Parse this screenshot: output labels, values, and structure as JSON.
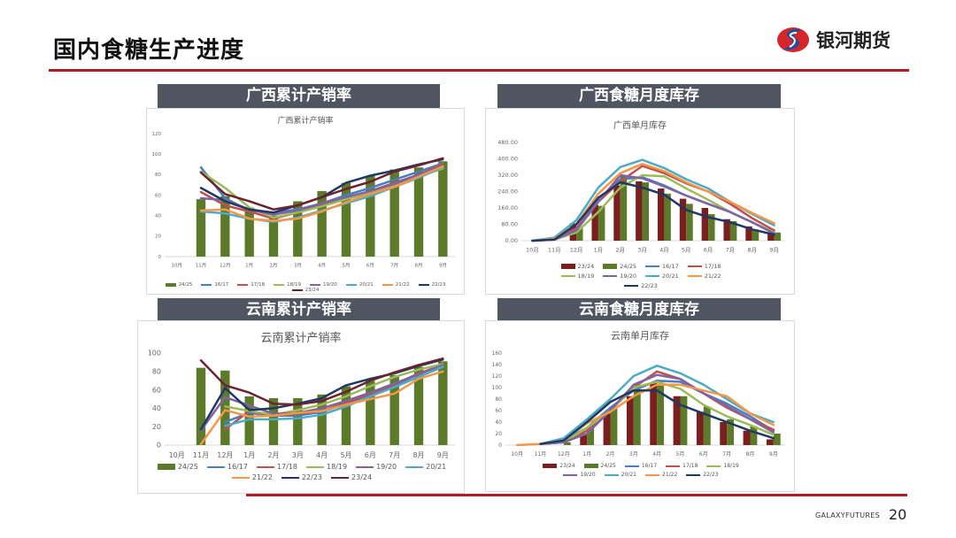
{
  "slide": {
    "title": "国内食糖生产进度",
    "logo_text": "银河期货",
    "footer_brand": "GALAXYFUTURES",
    "page_number": "20"
  },
  "colors": {
    "accent": "#b01e23",
    "header_bg": "#4f5661",
    "series": {
      "23/24_bar": "#7b1e1e",
      "24/25": "#5b7a2a",
      "16/17": "#4a7ebf",
      "17/18": "#c0504d",
      "18/19": "#9bbb59",
      "19/20": "#8064a2",
      "20/21": "#4bacc6",
      "21/22": "#f79646",
      "22/23": "#1f3864",
      "23/24": "#6b2330"
    }
  },
  "panels": [
    {
      "header": "广西累计产销率"
    },
    {
      "header": "广西食糖月度库存"
    },
    {
      "header": "云南累计产销率"
    },
    {
      "header": "云南食糖月度库存"
    }
  ],
  "chart_data": [
    {
      "type": "bar+line",
      "title": "广西累计产销率",
      "ylim": [
        0,
        120
      ],
      "yticks": [
        "0",
        "20",
        "40",
        "60",
        "80",
        "100",
        "120"
      ],
      "categories": [
        "10月",
        "11月",
        "12月",
        "1月",
        "2月",
        "3月",
        "4月",
        "5月",
        "6月",
        "7月",
        "8月",
        "9月"
      ],
      "legend": [
        "24/25",
        "16/17",
        "17/18",
        "18/19",
        "19/20",
        "20/21",
        "21/22",
        "22/23",
        "23/24"
      ],
      "bars": [
        {
          "name": "24/25",
          "values": [
            null,
            56,
            59,
            48,
            40,
            54,
            64,
            72,
            79,
            85,
            87,
            93
          ]
        }
      ],
      "series": [
        {
          "name": "16/17",
          "values": [
            null,
            87,
            57,
            45,
            43,
            46,
            52,
            60,
            67,
            75,
            83,
            91
          ]
        },
        {
          "name": "17/18",
          "values": [
            null,
            63,
            50,
            44,
            37,
            43,
            50,
            57,
            64,
            72,
            80,
            90
          ]
        },
        {
          "name": "18/19",
          "values": [
            null,
            83,
            67,
            48,
            38,
            43,
            49,
            56,
            62,
            69,
            78,
            86
          ]
        },
        {
          "name": "19/20",
          "values": [
            null,
            57,
            55,
            46,
            41,
            45,
            52,
            58,
            64,
            71,
            80,
            88
          ]
        },
        {
          "name": "20/21",
          "values": [
            null,
            44,
            42,
            37,
            34,
            38,
            45,
            52,
            59,
            68,
            77,
            87
          ]
        },
        {
          "name": "21/22",
          "values": [
            null,
            45,
            46,
            37,
            35,
            37,
            44,
            53,
            61,
            68,
            78,
            88
          ]
        },
        {
          "name": "22/23",
          "values": [
            null,
            67,
            54,
            46,
            43,
            50,
            58,
            72,
            79,
            84,
            90,
            95
          ]
        },
        {
          "name": "23/24",
          "values": [
            null,
            82,
            61,
            54,
            46,
            50,
            58,
            66,
            73,
            83,
            89,
            96
          ]
        }
      ]
    },
    {
      "type": "bar+line",
      "title": "广西单月库存",
      "ylim": [
        0,
        480
      ],
      "yticks": [
        "0.00",
        "80.00",
        "160.00",
        "240.00",
        "320.00",
        "400.00",
        "480.00"
      ],
      "categories": [
        "10月",
        "11月",
        "12月",
        "1月",
        "2月",
        "3月",
        "4月",
        "5月",
        "6月",
        "7月",
        "8月",
        "9月"
      ],
      "legend": [
        "23/24",
        "24/25",
        "16/17",
        "17/18",
        "18/19",
        "19/20",
        "20/21",
        "21/22",
        "22/23"
      ],
      "bars": [
        {
          "name": "23/24",
          "values": [
            0,
            5,
            85,
            175,
            270,
            290,
            255,
            205,
            160,
            105,
            70,
            35
          ]
        },
        {
          "name": "24/25",
          "values": [
            null,
            null,
            60,
            170,
            320,
            285,
            230,
            180,
            130,
            95,
            55,
            40
          ]
        }
      ],
      "series": [
        {
          "name": "16/17",
          "values": [
            0,
            10,
            60,
            200,
            300,
            310,
            270,
            220,
            180,
            140,
            90,
            40
          ]
        },
        {
          "name": "17/18",
          "values": [
            0,
            5,
            60,
            190,
            290,
            365,
            330,
            280,
            240,
            180,
            110,
            50
          ]
        },
        {
          "name": "18/19",
          "values": [
            0,
            5,
            40,
            140,
            260,
            320,
            315,
            255,
            200,
            140,
            90,
            40
          ]
        },
        {
          "name": "19/20",
          "values": [
            0,
            5,
            50,
            190,
            320,
            305,
            265,
            220,
            180,
            140,
            90,
            35
          ]
        },
        {
          "name": "20/21",
          "values": [
            0,
            15,
            100,
            260,
            360,
            395,
            355,
            300,
            255,
            190,
            130,
            75
          ]
        },
        {
          "name": "21/22",
          "values": [
            0,
            10,
            80,
            230,
            330,
            375,
            340,
            285,
            240,
            190,
            135,
            85
          ]
        },
        {
          "name": "22/23",
          "values": [
            0,
            5,
            80,
            210,
            285,
            260,
            225,
            150,
            115,
            90,
            55,
            30
          ]
        }
      ]
    },
    {
      "type": "bar+line",
      "title": "云南累计产销率",
      "ylim": [
        0,
        100
      ],
      "yticks": [
        "0",
        "20",
        "40",
        "60",
        "80",
        "100"
      ],
      "categories": [
        "10月",
        "11月",
        "12月",
        "1月",
        "2月",
        "3月",
        "4月",
        "5月",
        "6月",
        "7月",
        "8月",
        "9月"
      ],
      "legend": [
        "24/25",
        "16/17",
        "17/18",
        "18/19",
        "19/20",
        "20/21",
        "21/22",
        "22/23",
        "23/24"
      ],
      "bars": [
        {
          "name": "24/25",
          "values": [
            null,
            84,
            81,
            53,
            51,
            51,
            55,
            64,
            70,
            76,
            85,
            91
          ]
        }
      ],
      "series": [
        {
          "name": "16/17",
          "values": [
            null,
            null,
            25,
            35,
            32,
            32,
            36,
            45,
            55,
            65,
            77,
            88
          ]
        },
        {
          "name": "17/18",
          "values": [
            null,
            null,
            17,
            37,
            32,
            34,
            37,
            46,
            56,
            66,
            78,
            87
          ]
        },
        {
          "name": "18/19",
          "values": [
            null,
            null,
            42,
            37,
            33,
            38,
            44,
            53,
            64,
            74,
            82,
            88
          ]
        },
        {
          "name": "19/20",
          "values": [
            null,
            16,
            52,
            43,
            34,
            35,
            40,
            48,
            57,
            67,
            77,
            87
          ]
        },
        {
          "name": "20/21",
          "values": [
            null,
            null,
            21,
            28,
            28,
            29,
            33,
            42,
            53,
            63,
            74,
            85
          ]
        },
        {
          "name": "21/22",
          "values": [
            null,
            1,
            38,
            31,
            32,
            35,
            37,
            44,
            50,
            56,
            72,
            80
          ]
        },
        {
          "name": "22/23",
          "values": [
            null,
            17,
            62,
            38,
            40,
            45,
            51,
            65,
            72,
            78,
            86,
            93
          ]
        },
        {
          "name": "23/24",
          "values": [
            null,
            92,
            65,
            57,
            45,
            44,
            48,
            58,
            70,
            79,
            87,
            94
          ]
        }
      ]
    },
    {
      "type": "bar+line",
      "title": "云南单月库存",
      "ylim": [
        0,
        160
      ],
      "yticks": [
        "0",
        "20",
        "40",
        "60",
        "80",
        "100",
        "120",
        "140",
        "160"
      ],
      "categories": [
        "10月",
        "11月",
        "12月",
        "1月",
        "2月",
        "3月",
        "4月",
        "5月",
        "6月",
        "7月",
        "8月",
        "9月"
      ],
      "legend": [
        "23/24",
        "24/25",
        "16/17",
        "17/18",
        "18/19",
        "19/20",
        "20/21",
        "21/22",
        "22/23"
      ],
      "bars": [
        {
          "name": "23/24",
          "values": [
            null,
            null,
            null,
            20,
            55,
            85,
            108,
            85,
            58,
            40,
            25,
            10
          ]
        },
        {
          "name": "24/25",
          "values": [
            null,
            null,
            5,
            30,
            65,
            95,
            105,
            85,
            67,
            45,
            33,
            20
          ]
        }
      ],
      "series": [
        {
          "name": "16/17",
          "values": [
            null,
            2,
            8,
            30,
            65,
            95,
            112,
            110,
            90,
            72,
            50,
            25
          ]
        },
        {
          "name": "17/18",
          "values": [
            null,
            2,
            5,
            25,
            60,
            100,
            128,
            115,
            90,
            65,
            45,
            27
          ]
        },
        {
          "name": "18/19",
          "values": [
            null,
            2,
            5,
            30,
            60,
            100,
            110,
            98,
            70,
            50,
            35,
            18
          ]
        },
        {
          "name": "19/20",
          "values": [
            null,
            2,
            5,
            20,
            60,
            105,
            122,
            115,
            90,
            68,
            45,
            22
          ]
        },
        {
          "name": "20/21",
          "values": [
            null,
            2,
            12,
            45,
            80,
            120,
            138,
            125,
            105,
            80,
            55,
            40
          ]
        },
        {
          "name": "21/22",
          "values": [
            0,
            2,
            8,
            38,
            58,
            85,
            105,
            105,
            95,
            85,
            55,
            35
          ]
        },
        {
          "name": "22/23",
          "values": [
            null,
            2,
            8,
            40,
            75,
            95,
            95,
            70,
            55,
            40,
            25,
            12
          ]
        }
      ]
    }
  ]
}
